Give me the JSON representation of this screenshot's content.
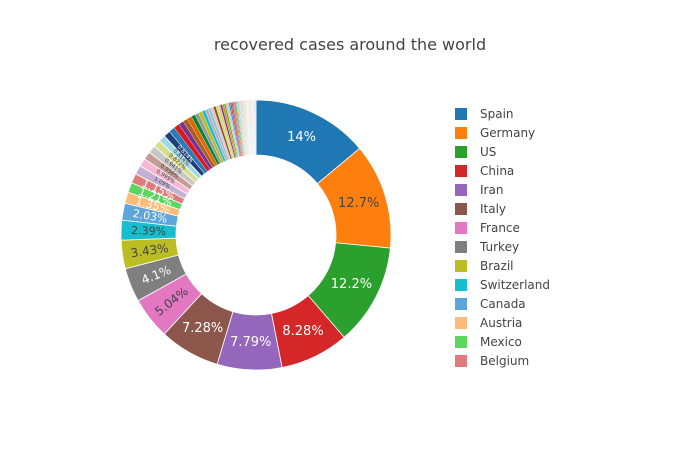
{
  "chart_data": {
    "type": "pie",
    "hole": true,
    "title": "recovered cases around the world",
    "legend_position": "right",
    "slices": [
      {
        "label": "Spain",
        "percent": 14.0,
        "text": "14%",
        "color": "#1f77b4"
      },
      {
        "label": "Germany",
        "percent": 12.7,
        "text": "12.7%",
        "color": "#ff7f0e"
      },
      {
        "label": "US",
        "percent": 12.2,
        "text": "12.2%",
        "color": "#2ca02c"
      },
      {
        "label": "China",
        "percent": 8.28,
        "text": "8.28%",
        "color": "#d62728"
      },
      {
        "label": "Iran",
        "percent": 7.79,
        "text": "7.79%",
        "color": "#9467bd"
      },
      {
        "label": "Italy",
        "percent": 7.28,
        "text": "7.28%",
        "color": "#8c564b"
      },
      {
        "label": "France",
        "percent": 5.04,
        "text": "5.04%",
        "color": "#e377c2"
      },
      {
        "label": "Turkey",
        "percent": 4.1,
        "text": "4.1%",
        "color": "#7f7f7f"
      },
      {
        "label": "Brazil",
        "percent": 3.43,
        "text": "3.43%",
        "color": "#bcbd22"
      },
      {
        "label": "Switzerland",
        "percent": 2.39,
        "text": "2.39%",
        "color": "#17becf"
      },
      {
        "label": "Canada",
        "percent": 2.03,
        "text": "2.03%",
        "color": "#5da5da"
      },
      {
        "label": "Austria",
        "percent": 1.35,
        "text": "1.35%",
        "color": "#ffbb78"
      },
      {
        "label": "Mexico",
        "percent": 1.21,
        "text": "1.21%",
        "color": "#5cd65c"
      },
      {
        "label": "Belgium",
        "percent": 1.15,
        "text": "1.15%",
        "color": "#e07b7b"
      }
    ],
    "minor_slices": {
      "texts": [
        "1.09%",
        "0.999%",
        "0.956%",
        "0.941%",
        "0.877%",
        "0.814%",
        "0.814%"
      ],
      "colors": [
        "#c5b0d5",
        "#f7b6d2",
        "#c49c94",
        "#c7c7c7",
        "#dbdb8d",
        "#9edae5",
        "#1f3f7a"
      ],
      "remainder_percent": 11.14,
      "remainder_palette": [
        "#2c7bb6",
        "#d7191c",
        "#7b3294",
        "#a6611a",
        "#e66101",
        "#008837",
        "#999999",
        "#bcbd22",
        "#17becf",
        "#c2a5cf",
        "#80cdc1",
        "#f1b6da",
        "#8c510a",
        "#b8e186",
        "#fdb863",
        "#5e3c99",
        "#e08214",
        "#4dac26",
        "#dfc27d",
        "#92c5de"
      ]
    }
  }
}
